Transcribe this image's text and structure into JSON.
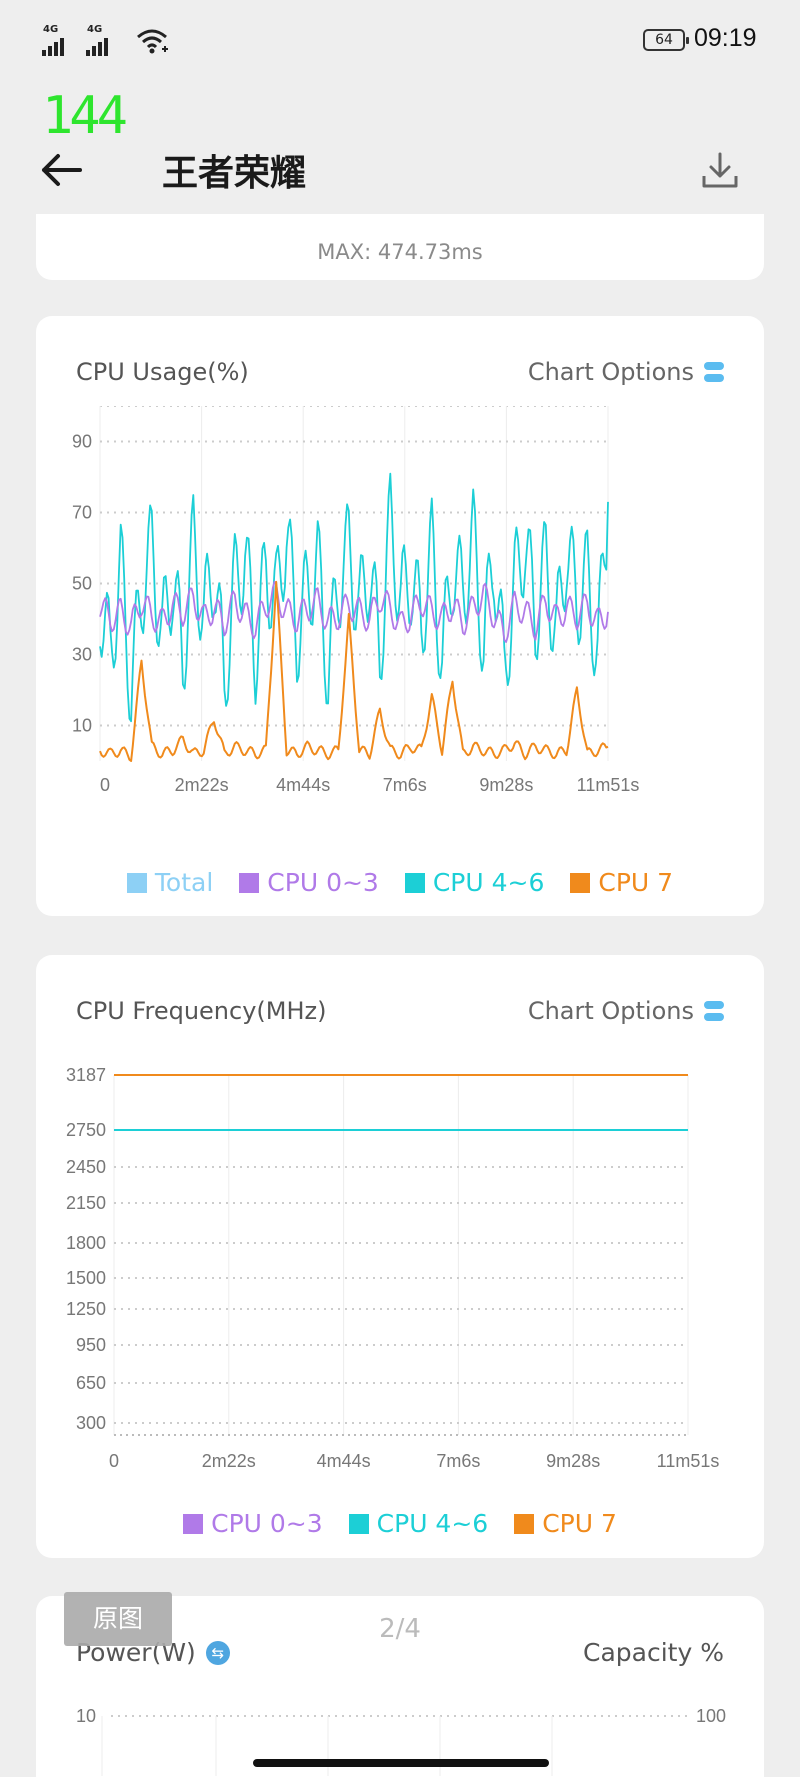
{
  "status": {
    "signal1": "4G",
    "signal2": "4G",
    "battery": "64",
    "time": "09:19"
  },
  "fps_overlay": "144",
  "header": {
    "title": "王者荣耀",
    "back_icon": "arrow-left-icon",
    "download_icon": "download-icon"
  },
  "top_card": {
    "max_label": "MAX: 474.73ms"
  },
  "cpu_usage": {
    "title": "CPU Usage(%)",
    "options_label": "Chart Options",
    "options_icon": "toggle-icon"
  },
  "cpu_freq": {
    "title": "CPU Frequency(MHz)",
    "options_label": "Chart Options",
    "options_icon": "toggle-icon"
  },
  "power_card": {
    "title": "Power(W)",
    "swap_icon": "swap-icon",
    "capacity_label": "Capacity %",
    "left_tick": "10",
    "right_tick": "100"
  },
  "page_indicator": "2/4",
  "original_button": "原图",
  "chart_data": [
    {
      "type": "line",
      "title": "CPU Usage(%)",
      "x_ticks": [
        "0",
        "2m22s",
        "4m44s",
        "7m6s",
        "9m28s",
        "11m51s"
      ],
      "y_ticks": [
        10,
        30,
        50,
        70,
        90
      ],
      "ylim": [
        0,
        100
      ],
      "legend": "bottom",
      "series": [
        {
          "name": "Total",
          "color": "#8dd0f5",
          "values": []
        },
        {
          "name": "CPU 0~3",
          "color": "#b07ae8",
          "values": [
            44,
            40,
            42,
            38,
            45,
            41,
            39,
            44,
            42,
            46,
            40,
            43,
            39,
            45,
            41,
            38,
            44,
            47,
            42,
            40,
            43,
            45,
            39,
            41,
            44,
            42,
            40,
            46,
            43,
            38,
            41,
            45,
            42,
            40,
            44,
            39,
            43,
            47,
            41,
            36,
            44,
            42,
            38,
            45,
            40,
            43,
            41,
            44,
            39,
            42
          ]
        },
        {
          "name": "CPU 4~6",
          "color": "#1ccfd6",
          "values": [
            45,
            30,
            55,
            20,
            48,
            60,
            35,
            52,
            28,
            62,
            40,
            55,
            22,
            50,
            58,
            30,
            54,
            45,
            65,
            35,
            48,
            56,
            25,
            50,
            60,
            42,
            55,
            30,
            68,
            45,
            52,
            38,
            60,
            28,
            55,
            47,
            63,
            33,
            58,
            25,
            50,
            62,
            40,
            56,
            35,
            60,
            45,
            52,
            30,
            73
          ]
        },
        {
          "name": "CPU 7",
          "color": "#f08a1c",
          "values": [
            3,
            2,
            3,
            1,
            28,
            4,
            2,
            3,
            6,
            2,
            3,
            12,
            2,
            4,
            3,
            2,
            3,
            50,
            3,
            2,
            4,
            3,
            2,
            3,
            40,
            3,
            2,
            14,
            3,
            2,
            4,
            3,
            18,
            3,
            23,
            2,
            4,
            3,
            2,
            3,
            5,
            2,
            4,
            3,
            2,
            3,
            20,
            2,
            3,
            4
          ]
        }
      ]
    },
    {
      "type": "line",
      "title": "CPU Frequency(MHz)",
      "x_ticks": [
        "0",
        "2m22s",
        "4m44s",
        "7m6s",
        "9m28s",
        "11m51s"
      ],
      "y_ticks": [
        300,
        650,
        950,
        1250,
        1500,
        1800,
        2150,
        2450,
        2750,
        3187
      ],
      "legend": "bottom",
      "series": [
        {
          "name": "CPU 0~3",
          "color": "#b07ae8",
          "values": []
        },
        {
          "name": "CPU 4~6",
          "color": "#1ccfd6",
          "values": [
            2750,
            2750
          ]
        },
        {
          "name": "CPU 7",
          "color": "#f08a1c",
          "values": [
            3187,
            3187
          ]
        }
      ]
    }
  ]
}
